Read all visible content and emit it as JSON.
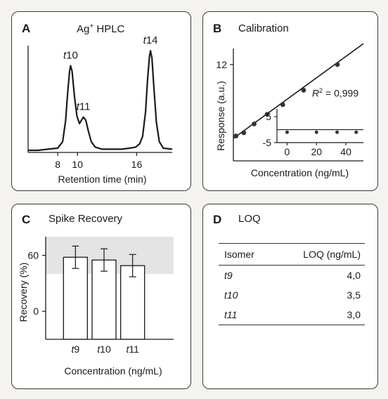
{
  "colors": {
    "line": "#1a1a1a",
    "shade": "#e4e4e4",
    "bar_fill": "#ffffff"
  },
  "panelA": {
    "letter": "A",
    "title": "Ag",
    "title_sup": "+",
    "title_rest": " HPLC",
    "chart_data": {
      "type": "line",
      "title": "Ag+ HPLC",
      "xlabel": "Retention time (min)",
      "ylabel": "",
      "xlim": [
        5,
        19.6
      ],
      "xticks": [
        8,
        10,
        16
      ],
      "ylim": [
        0,
        1.05
      ],
      "peaks": [
        {
          "label": "t10",
          "x": 9.3,
          "height": 0.81
        },
        {
          "label": "t11",
          "x": 10.6,
          "height": 0.33
        },
        {
          "label": "t14",
          "x": 17.4,
          "height": 0.95
        }
      ],
      "series": [
        {
          "x": [
            5.0,
            6.0,
            7.0,
            8.0,
            8.5,
            8.8,
            9.0,
            9.2,
            9.3,
            9.45,
            9.7,
            9.95,
            10.2,
            10.4,
            10.6,
            10.85,
            11.1,
            11.4,
            11.8,
            12.5,
            13.5,
            14.5,
            15.3,
            15.9,
            16.3,
            16.6,
            16.9,
            17.1,
            17.3,
            17.4,
            17.55,
            17.75,
            18.0,
            18.3,
            18.7,
            19.6
          ],
          "y": [
            0.02,
            0.02,
            0.03,
            0.04,
            0.1,
            0.3,
            0.55,
            0.76,
            0.81,
            0.76,
            0.52,
            0.34,
            0.27,
            0.3,
            0.33,
            0.3,
            0.2,
            0.1,
            0.05,
            0.03,
            0.03,
            0.03,
            0.04,
            0.05,
            0.08,
            0.15,
            0.38,
            0.68,
            0.9,
            0.95,
            0.88,
            0.6,
            0.28,
            0.1,
            0.04,
            0.03
          ]
        }
      ]
    }
  },
  "panelB": {
    "letter": "B",
    "title": "Calibration",
    "annotation_prefix": "R",
    "annotation_sup": "2",
    "annotation_value": " = 0,999",
    "chart_data": {
      "type": "scatter",
      "title": "Calibration",
      "xlabel": "Concentration (ng/mL)",
      "ylabel": "Response (a.u.)",
      "xlim": [
        0,
        100
      ],
      "ylim": [
        0,
        14
      ],
      "yticks": [
        12
      ],
      "points": {
        "x": [
          2,
          8,
          16,
          26,
          38,
          54,
          80
        ],
        "y": [
          3.1,
          3.5,
          4.6,
          5.8,
          7.0,
          8.8,
          12.0
        ]
      },
      "fit_line": {
        "x": [
          0,
          100
        ],
        "y": [
          2.8,
          14.6
        ]
      },
      "inset": {
        "type": "scatter",
        "title": "",
        "xlabel": "",
        "ylabel": "",
        "xlim": [
          -5,
          50
        ],
        "ylim": [
          -5,
          8
        ],
        "xticks": [
          0,
          20,
          40
        ],
        "yticks": [
          5,
          -5
        ],
        "zero_line": 0,
        "points": {
          "x": [
            0,
            20,
            34,
            47
          ],
          "y": [
            -1,
            -1,
            -1,
            -1
          ]
        }
      }
    }
  },
  "panelC": {
    "letter": "C",
    "title": "Spike Recovery",
    "chart_data": {
      "type": "bar",
      "title": "Spike Recovery",
      "xlabel": "Concentration (ng/mL)",
      "ylabel": "Recovery (%)",
      "categories": [
        "t9",
        "t10",
        "t11"
      ],
      "values": [
        58,
        55,
        49
      ],
      "errors": [
        12,
        12,
        12
      ],
      "ylim": [
        -30,
        80
      ],
      "yticks": [
        60,
        0
      ],
      "shaded_band": [
        40,
        80
      ]
    }
  },
  "panelD": {
    "letter": "D",
    "title": "LOQ",
    "table": {
      "headers": [
        "Isomer",
        "LOQ (ng/mL)"
      ],
      "rows": [
        [
          "t9",
          "4,0"
        ],
        [
          "t10",
          "3,5"
        ],
        [
          "t11",
          "3,0"
        ]
      ]
    }
  }
}
